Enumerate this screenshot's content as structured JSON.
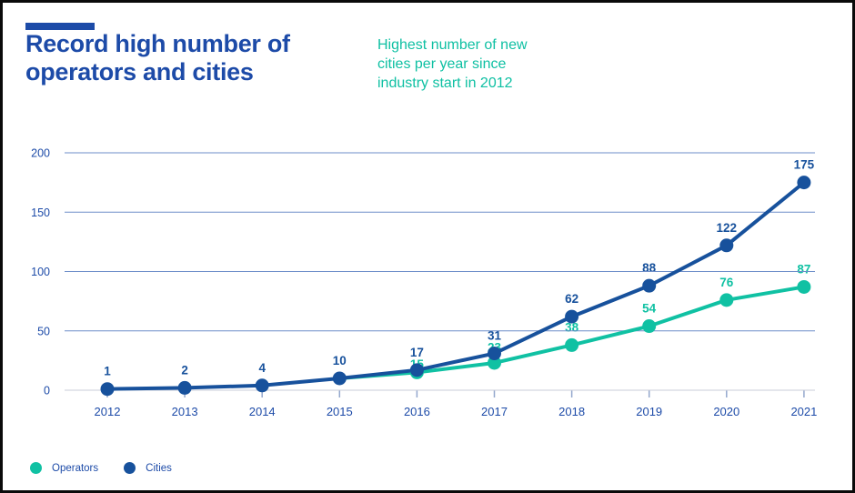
{
  "header": {
    "title_lines": [
      "Record high number of",
      "operators and cities"
    ],
    "subtitle_lines": [
      "Highest number of new",
      "cities per year since",
      "industry start in 2012"
    ]
  },
  "colors": {
    "title_navy": "#1d4ba8",
    "series_navy": "#17519c",
    "series_teal": "#10c1a3",
    "grid_blue": "#6e8ec9",
    "baseline_gray": "#c9cdd8",
    "tick_blue_gray": "#93a7cd",
    "frame_black": "#0a0a0a"
  },
  "chart_data": {
    "type": "line",
    "title": "Record high number of operators and cities",
    "subtitle": "Highest number of new cities per year since industry start in 2012",
    "x_labels": [
      "2012",
      "2013",
      "2014",
      "2015",
      "2016",
      "2017",
      "2018",
      "2019",
      "2020",
      "2021"
    ],
    "xlabel": "",
    "ylabel": "",
    "ylim": [
      0,
      200
    ],
    "yticks": [
      0,
      50,
      100,
      150,
      200
    ],
    "grid": true,
    "legend_position": "bottom-left",
    "series": [
      {
        "name": "Operators",
        "color": "#10c1a3",
        "values": [
          null,
          null,
          null,
          10,
          15,
          23,
          38,
          54,
          76,
          87
        ],
        "point_labels": [
          "",
          "",
          "",
          "",
          "15",
          "23",
          "38",
          "54",
          "76",
          "87"
        ]
      },
      {
        "name": "Cities",
        "color": "#17519c",
        "values": [
          1,
          2,
          4,
          10,
          17,
          31,
          62,
          88,
          122,
          175
        ],
        "point_labels": [
          "1",
          "2",
          "4",
          "10",
          "17",
          "31",
          "62",
          "88",
          "122",
          "175"
        ]
      }
    ]
  },
  "legend": {
    "items": [
      {
        "label": "Operators",
        "color": "#10c1a3"
      },
      {
        "label": "Cities",
        "color": "#17519c"
      }
    ]
  }
}
